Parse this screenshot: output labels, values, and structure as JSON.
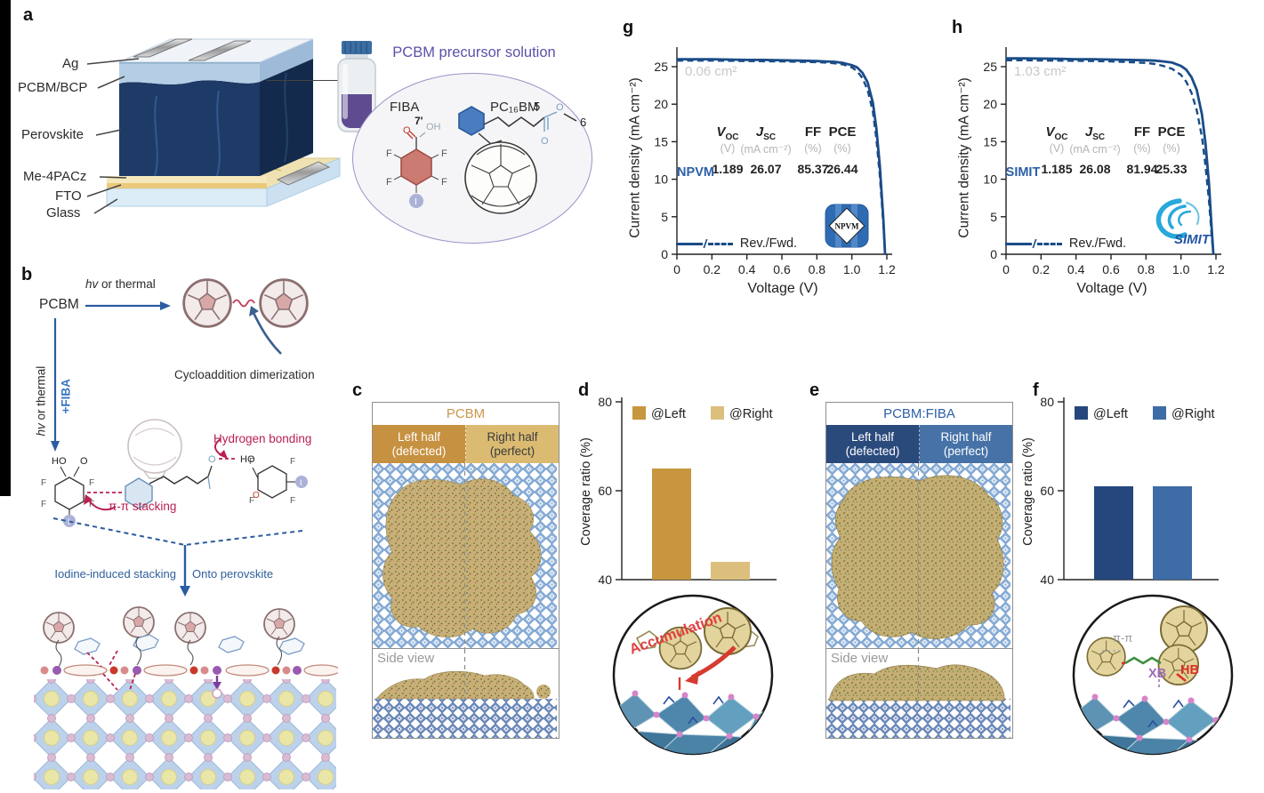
{
  "atoms": {
    "f": "F",
    "i": "I",
    "o": "O",
    "oh": "OH",
    "ho": "HO",
    "pos7": "7'",
    "five": "5",
    "six": "6"
  },
  "panel_a": {
    "label": "a",
    "layers": [
      "Ag",
      "PCBM/BCP",
      "Perovskite",
      "Me-4PACz",
      "FTO",
      "Glass"
    ],
    "solution_title": "PCBM precursor solution",
    "fiba_name": "FIBA",
    "pcbm_name": "PC₁₆BM"
  },
  "panel_b": {
    "label": "b",
    "reactant": "PCBM",
    "top_arrow_hv": "hv",
    "top_arrow_rest": " or thermal",
    "left_arrow_hv": "hv",
    "left_arrow_rest": " or thermal",
    "left_arrow_label2": "+FIBA",
    "dimerization_label": "Cycloaddition dimerization",
    "hbond_label": "Hydrogen bonding",
    "pipi_label": "π-π stacking",
    "iodine_label": "Iodine-induced stacking",
    "perovskite_label": "Onto perovskite"
  },
  "panel_c": {
    "label": "c",
    "title": "PCBM",
    "left_header_line1": "Left half",
    "left_header_line2": "(defected)",
    "right_header_line1": "Right half",
    "right_header_line2": "(perfect)",
    "side_view_label": "Side view"
  },
  "panel_d": {
    "label": "d",
    "inset_label": "Accumulation"
  },
  "panel_e": {
    "label": "e",
    "title": "PCBM:FIBA",
    "left_header_line1": "Left half",
    "left_header_line2": "(defected)",
    "right_header_line1": "Right half",
    "right_header_line2": "(perfect)",
    "side_view_label": "Side view"
  },
  "panel_f": {
    "label": "f",
    "inset_pipi": "π-π",
    "inset_xb": "XB",
    "inset_hb": "HB"
  },
  "panel_g": {
    "label": "g"
  },
  "panel_h": {
    "label": "h"
  },
  "chart_data": [
    {
      "id": "d",
      "type": "bar",
      "title": "",
      "categories": [
        "@Left",
        "@Right"
      ],
      "values": [
        65,
        44
      ],
      "colors": [
        "#C8963F",
        "#DCBE7D"
      ],
      "ylabel": "Coverage ratio (%)",
      "xlabel": "",
      "ylim": [
        40,
        80
      ],
      "yticks": [
        40,
        60,
        80
      ],
      "legend": [
        "@Left",
        "@Right"
      ],
      "legend_position": "top",
      "grid": false
    },
    {
      "id": "f",
      "type": "bar",
      "title": "",
      "categories": [
        "@Left",
        "@Right"
      ],
      "values": [
        61,
        61
      ],
      "colors": [
        "#25477E",
        "#3E6CA6"
      ],
      "ylabel": "Coverage ratio (%)",
      "xlabel": "",
      "ylim": [
        40,
        80
      ],
      "yticks": [
        40,
        60,
        80
      ],
      "legend": [
        "@Left",
        "@Right"
      ],
      "legend_position": "top",
      "grid": false
    },
    {
      "id": "g",
      "type": "line",
      "title": "",
      "xlabel": "Voltage (V)",
      "ylabel": "Current density (mA cm⁻²)",
      "xlim": [
        0,
        1.2
      ],
      "ylim": [
        0,
        25
      ],
      "xticks": [
        0,
        0.2,
        0.4,
        0.6,
        0.8,
        1.0,
        1.2
      ],
      "yticks": [
        0,
        5,
        10,
        15,
        20,
        25
      ],
      "area_label": "0.06 cm²",
      "legend_label": "Rev./Fwd.",
      "logo": "NPVM",
      "grid": false,
      "table": {
        "cols": [
          {
            "sym_italic": "V",
            "sym": "",
            "sub": "OC",
            "unit": "(V)"
          },
          {
            "sym_italic": "J",
            "sym": "",
            "sub": "SC",
            "unit": "(mA cm⁻²)"
          },
          {
            "sym_italic": "",
            "sym": "FF",
            "sub": "",
            "unit": "(%)"
          },
          {
            "sym_italic": "",
            "sym": "PCE",
            "sub": "",
            "unit": "(%)"
          }
        ],
        "row_label": "NPVM",
        "values": [
          "1.189",
          "26.07",
          "85.37",
          "26.44"
        ]
      },
      "series": [
        {
          "name": "Rev.",
          "style": "solid",
          "x": [
            0,
            0.1,
            0.2,
            0.3,
            0.4,
            0.5,
            0.6,
            0.7,
            0.8,
            0.85,
            0.9,
            0.95,
            1.0,
            1.03,
            1.06,
            1.09,
            1.12,
            1.14,
            1.16,
            1.18,
            1.19
          ],
          "y": [
            26.0,
            26.0,
            26.0,
            25.95,
            25.9,
            25.9,
            25.85,
            25.8,
            25.75,
            25.7,
            25.65,
            25.5,
            25.2,
            24.9,
            24.2,
            22.9,
            20.2,
            16.8,
            11.8,
            4.6,
            0
          ]
        },
        {
          "name": "Fwd.",
          "style": "dashed",
          "x": [
            0,
            0.1,
            0.2,
            0.3,
            0.4,
            0.5,
            0.6,
            0.7,
            0.8,
            0.85,
            0.9,
            0.95,
            1.0,
            1.03,
            1.06,
            1.09,
            1.12,
            1.14,
            1.16,
            1.18,
            1.19
          ],
          "y": [
            25.8,
            25.8,
            25.8,
            25.78,
            25.75,
            25.72,
            25.7,
            25.65,
            25.6,
            25.55,
            25.45,
            25.3,
            24.9,
            24.4,
            23.5,
            21.9,
            19.0,
            15.4,
            10.5,
            3.9,
            0
          ]
        }
      ]
    },
    {
      "id": "h",
      "type": "line",
      "title": "",
      "xlabel": "Voltage (V)",
      "ylabel": "Current density (mA cm⁻²)",
      "xlim": [
        0,
        1.2
      ],
      "ylim": [
        0,
        25
      ],
      "xticks": [
        0,
        0.2,
        0.4,
        0.6,
        0.8,
        1.0,
        1.2
      ],
      "yticks": [
        0,
        5,
        10,
        15,
        20,
        25
      ],
      "area_label": "1.03 cm²",
      "legend_label": "Rev./Fwd.",
      "logo": "SIMIT",
      "grid": false,
      "table": {
        "cols": [
          {
            "sym_italic": "V",
            "sym": "",
            "sub": "OC",
            "unit": "(V)"
          },
          {
            "sym_italic": "J",
            "sym": "",
            "sub": "SC",
            "unit": "(mA cm⁻²)"
          },
          {
            "sym_italic": "",
            "sym": "FF",
            "sub": "",
            "unit": "(%)"
          },
          {
            "sym_italic": "",
            "sym": "PCE",
            "sub": "",
            "unit": "(%)"
          }
        ],
        "row_label": "SIMIT",
        "values": [
          "1.185",
          "26.08",
          "81.94",
          "25.33"
        ]
      },
      "series": [
        {
          "name": "Rev.",
          "style": "solid",
          "x": [
            0,
            0.1,
            0.2,
            0.3,
            0.4,
            0.5,
            0.6,
            0.7,
            0.8,
            0.85,
            0.9,
            0.95,
            1.0,
            1.03,
            1.06,
            1.09,
            1.12,
            1.14,
            1.16,
            1.175,
            1.185
          ],
          "y": [
            26.1,
            26.1,
            26.08,
            26.05,
            26.0,
            26.0,
            25.95,
            25.9,
            25.85,
            25.8,
            25.7,
            25.55,
            25.1,
            24.6,
            23.6,
            21.9,
            18.6,
            14.8,
            9.5,
            3.6,
            0
          ]
        },
        {
          "name": "Fwd.",
          "style": "dashed",
          "x": [
            0,
            0.1,
            0.2,
            0.3,
            0.4,
            0.5,
            0.6,
            0.7,
            0.8,
            0.85,
            0.9,
            0.95,
            1.0,
            1.03,
            1.06,
            1.09,
            1.12,
            1.14,
            1.16,
            1.175,
            1.185
          ],
          "y": [
            25.85,
            25.85,
            25.82,
            25.8,
            25.78,
            25.75,
            25.7,
            25.6,
            25.5,
            25.35,
            25.1,
            24.7,
            23.9,
            23.0,
            21.5,
            19.2,
            15.6,
            11.8,
            7.2,
            2.6,
            0
          ]
        }
      ]
    }
  ]
}
